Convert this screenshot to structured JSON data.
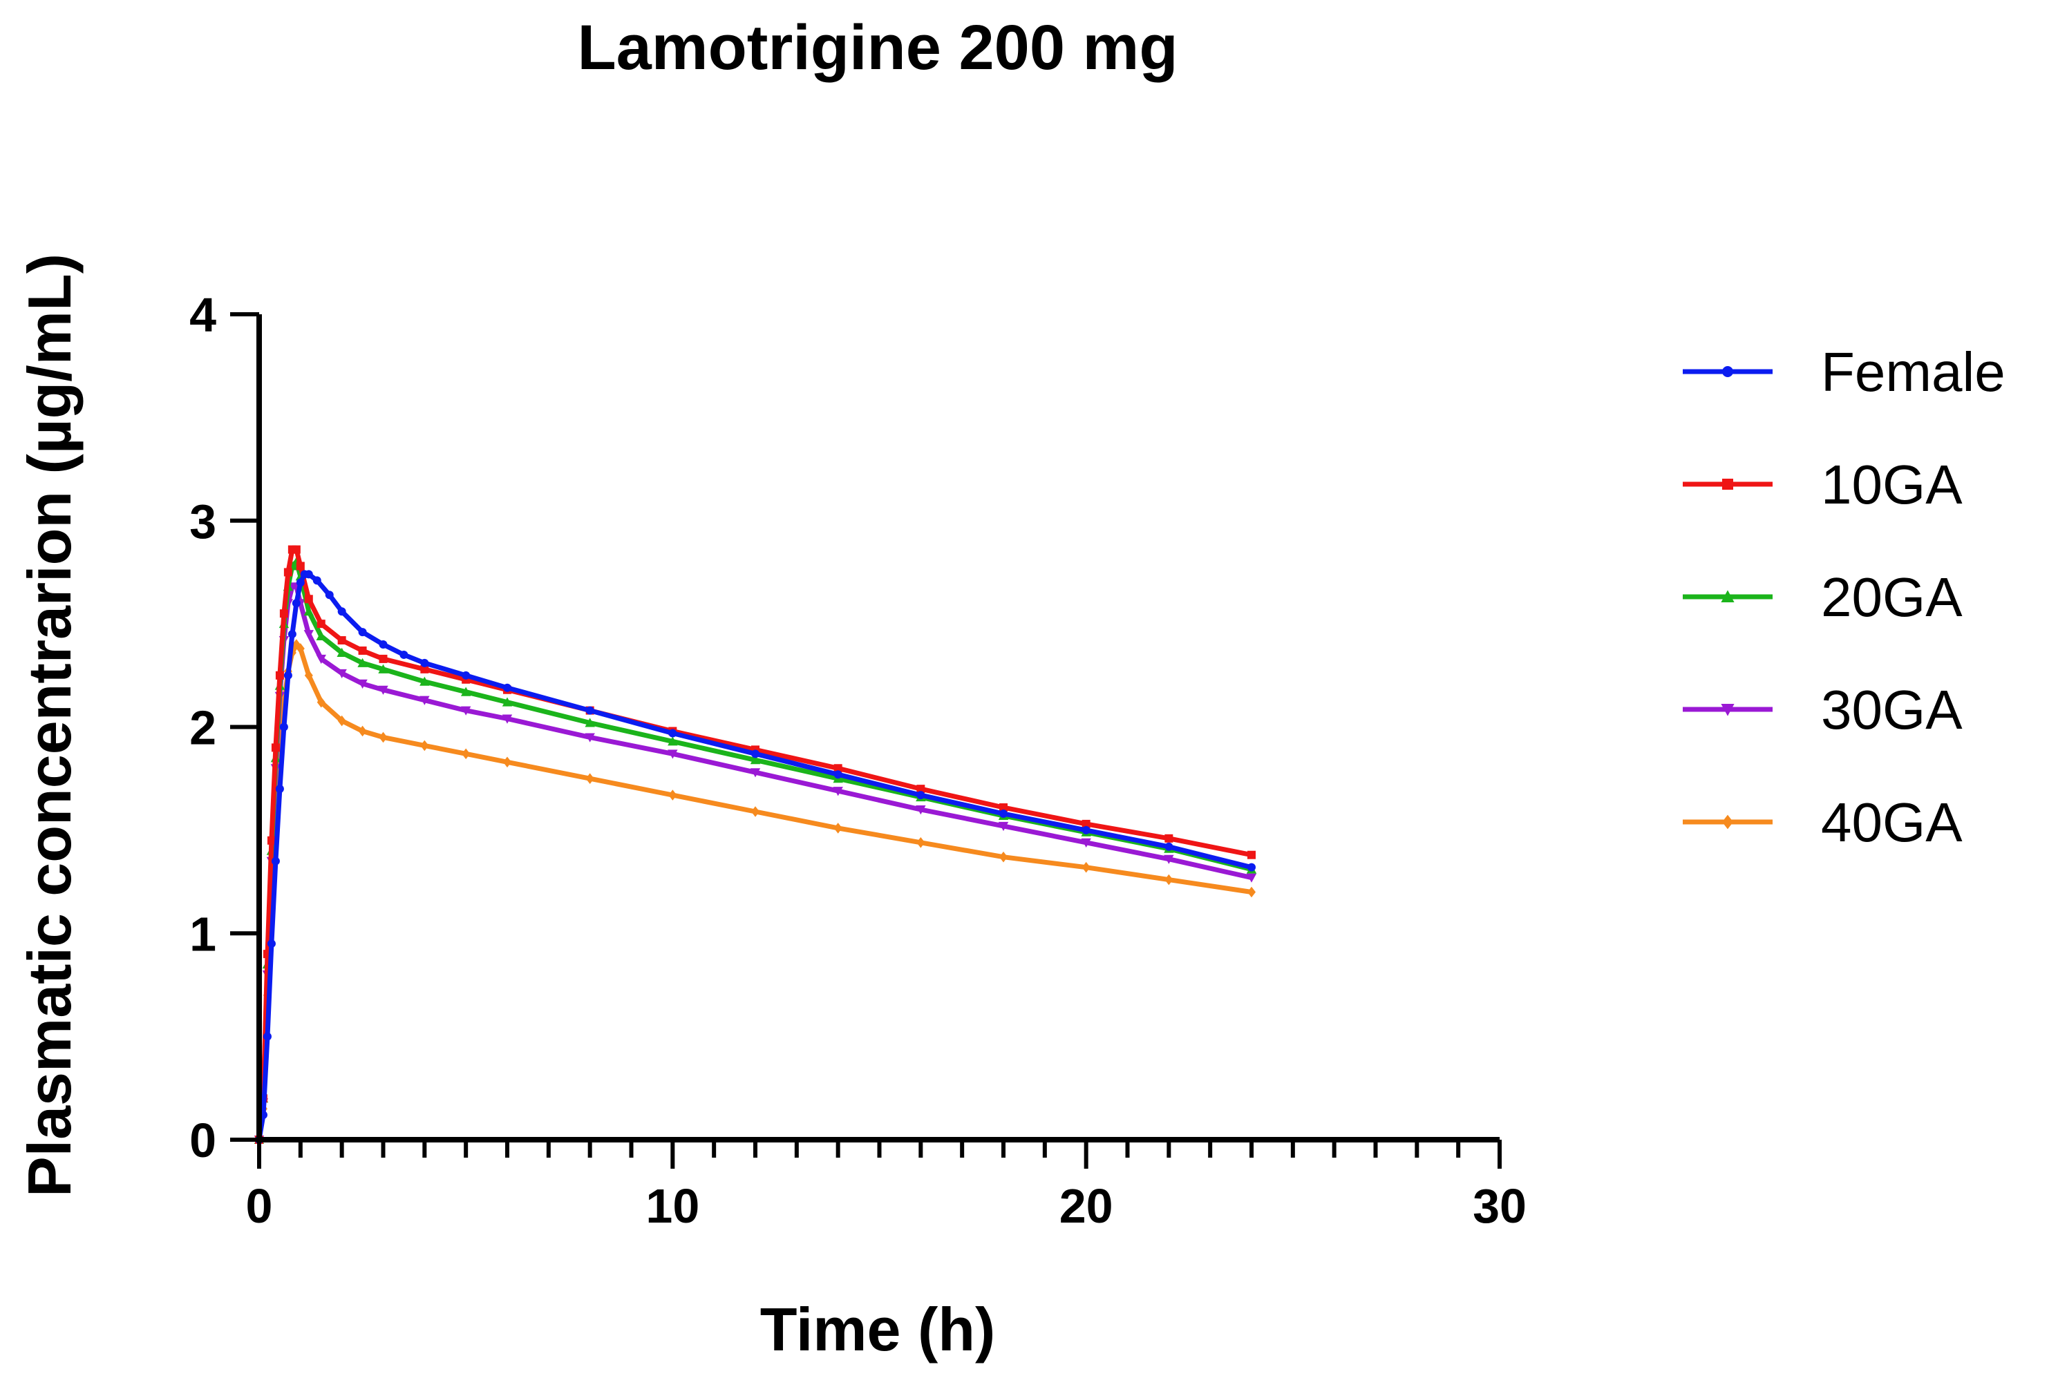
{
  "chart_data": {
    "type": "line",
    "title": "Lamotrigine 200 mg",
    "xlabel": "Time (h)",
    "ylabel": "Plasmatic concentrarion (µg/mL)",
    "xlim": [
      0,
      30
    ],
    "ylim": [
      0,
      4
    ],
    "x_ticks": [
      0,
      10,
      20,
      30
    ],
    "y_ticks": [
      0,
      1,
      2,
      3,
      4
    ],
    "x_minor_step": 1,
    "legend_position": "right",
    "series": [
      {
        "name": "Female",
        "color": "#0b1cf0",
        "marker": "circle",
        "points": [
          [
            0,
            0
          ],
          [
            0.1,
            0.12
          ],
          [
            0.2,
            0.5
          ],
          [
            0.3,
            0.95
          ],
          [
            0.4,
            1.35
          ],
          [
            0.5,
            1.7
          ],
          [
            0.6,
            2.0
          ],
          [
            0.7,
            2.25
          ],
          [
            0.8,
            2.45
          ],
          [
            0.9,
            2.6
          ],
          [
            1.0,
            2.7
          ],
          [
            1.1,
            2.74
          ],
          [
            1.2,
            2.74
          ],
          [
            1.4,
            2.71
          ],
          [
            1.7,
            2.64
          ],
          [
            2.0,
            2.56
          ],
          [
            2.5,
            2.46
          ],
          [
            3.0,
            2.4
          ],
          [
            3.5,
            2.35
          ],
          [
            4,
            2.31
          ],
          [
            5,
            2.25
          ],
          [
            6,
            2.19
          ],
          [
            8,
            2.08
          ],
          [
            10,
            1.97
          ],
          [
            12,
            1.87
          ],
          [
            14,
            1.77
          ],
          [
            16,
            1.67
          ],
          [
            18,
            1.58
          ],
          [
            20,
            1.5
          ],
          [
            22,
            1.42
          ],
          [
            24,
            1.32
          ]
        ]
      },
      {
        "name": "10GA",
        "color": "#ef1515",
        "marker": "square",
        "points": [
          [
            0,
            0
          ],
          [
            0.1,
            0.2
          ],
          [
            0.2,
            0.9
          ],
          [
            0.3,
            1.45
          ],
          [
            0.4,
            1.9
          ],
          [
            0.5,
            2.25
          ],
          [
            0.6,
            2.55
          ],
          [
            0.7,
            2.75
          ],
          [
            0.8,
            2.86
          ],
          [
            0.9,
            2.86
          ],
          [
            1.0,
            2.78
          ],
          [
            1.2,
            2.62
          ],
          [
            1.5,
            2.5
          ],
          [
            2.0,
            2.42
          ],
          [
            2.5,
            2.37
          ],
          [
            3.0,
            2.33
          ],
          [
            4,
            2.28
          ],
          [
            5,
            2.23
          ],
          [
            6,
            2.18
          ],
          [
            8,
            2.08
          ],
          [
            10,
            1.98
          ],
          [
            12,
            1.89
          ],
          [
            14,
            1.8
          ],
          [
            16,
            1.7
          ],
          [
            18,
            1.61
          ],
          [
            20,
            1.53
          ],
          [
            22,
            1.46
          ],
          [
            24,
            1.38
          ]
        ]
      },
      {
        "name": "20GA",
        "color": "#1bb41b",
        "marker": "triangle-up",
        "points": [
          [
            0,
            0
          ],
          [
            0.1,
            0.2
          ],
          [
            0.2,
            0.85
          ],
          [
            0.3,
            1.4
          ],
          [
            0.4,
            1.85
          ],
          [
            0.5,
            2.2
          ],
          [
            0.6,
            2.5
          ],
          [
            0.7,
            2.68
          ],
          [
            0.8,
            2.78
          ],
          [
            0.9,
            2.8
          ],
          [
            1.0,
            2.73
          ],
          [
            1.2,
            2.56
          ],
          [
            1.5,
            2.44
          ],
          [
            2.0,
            2.36
          ],
          [
            2.5,
            2.31
          ],
          [
            3.0,
            2.28
          ],
          [
            4,
            2.22
          ],
          [
            5,
            2.17
          ],
          [
            6,
            2.12
          ],
          [
            8,
            2.02
          ],
          [
            10,
            1.93
          ],
          [
            12,
            1.84
          ],
          [
            14,
            1.75
          ],
          [
            16,
            1.66
          ],
          [
            18,
            1.57
          ],
          [
            20,
            1.49
          ],
          [
            22,
            1.41
          ],
          [
            24,
            1.31
          ]
        ]
      },
      {
        "name": "30GA",
        "color": "#9a19d4",
        "marker": "triangle-down",
        "points": [
          [
            0,
            0
          ],
          [
            0.1,
            0.18
          ],
          [
            0.2,
            0.8
          ],
          [
            0.3,
            1.35
          ],
          [
            0.4,
            1.8
          ],
          [
            0.5,
            2.15
          ],
          [
            0.6,
            2.42
          ],
          [
            0.7,
            2.6
          ],
          [
            0.8,
            2.68
          ],
          [
            0.9,
            2.68
          ],
          [
            1.0,
            2.6
          ],
          [
            1.2,
            2.45
          ],
          [
            1.5,
            2.33
          ],
          [
            2.0,
            2.26
          ],
          [
            2.5,
            2.21
          ],
          [
            3.0,
            2.18
          ],
          [
            4,
            2.13
          ],
          [
            5,
            2.08
          ],
          [
            6,
            2.04
          ],
          [
            8,
            1.95
          ],
          [
            10,
            1.87
          ],
          [
            12,
            1.78
          ],
          [
            14,
            1.69
          ],
          [
            16,
            1.6
          ],
          [
            18,
            1.52
          ],
          [
            20,
            1.44
          ],
          [
            22,
            1.36
          ],
          [
            24,
            1.27
          ]
        ]
      },
      {
        "name": "40GA",
        "color": "#f68a1e",
        "marker": "diamond",
        "points": [
          [
            0,
            0
          ],
          [
            0.1,
            0.15
          ],
          [
            0.2,
            0.7
          ],
          [
            0.3,
            1.2
          ],
          [
            0.4,
            1.6
          ],
          [
            0.5,
            1.9
          ],
          [
            0.6,
            2.12
          ],
          [
            0.7,
            2.27
          ],
          [
            0.8,
            2.36
          ],
          [
            0.9,
            2.4
          ],
          [
            1.0,
            2.38
          ],
          [
            1.2,
            2.25
          ],
          [
            1.5,
            2.12
          ],
          [
            2.0,
            2.03
          ],
          [
            2.5,
            1.98
          ],
          [
            3.0,
            1.95
          ],
          [
            4,
            1.91
          ],
          [
            5,
            1.87
          ],
          [
            6,
            1.83
          ],
          [
            8,
            1.75
          ],
          [
            10,
            1.67
          ],
          [
            12,
            1.59
          ],
          [
            14,
            1.51
          ],
          [
            16,
            1.44
          ],
          [
            18,
            1.37
          ],
          [
            20,
            1.32
          ],
          [
            22,
            1.26
          ],
          [
            24,
            1.2
          ]
        ]
      }
    ]
  }
}
